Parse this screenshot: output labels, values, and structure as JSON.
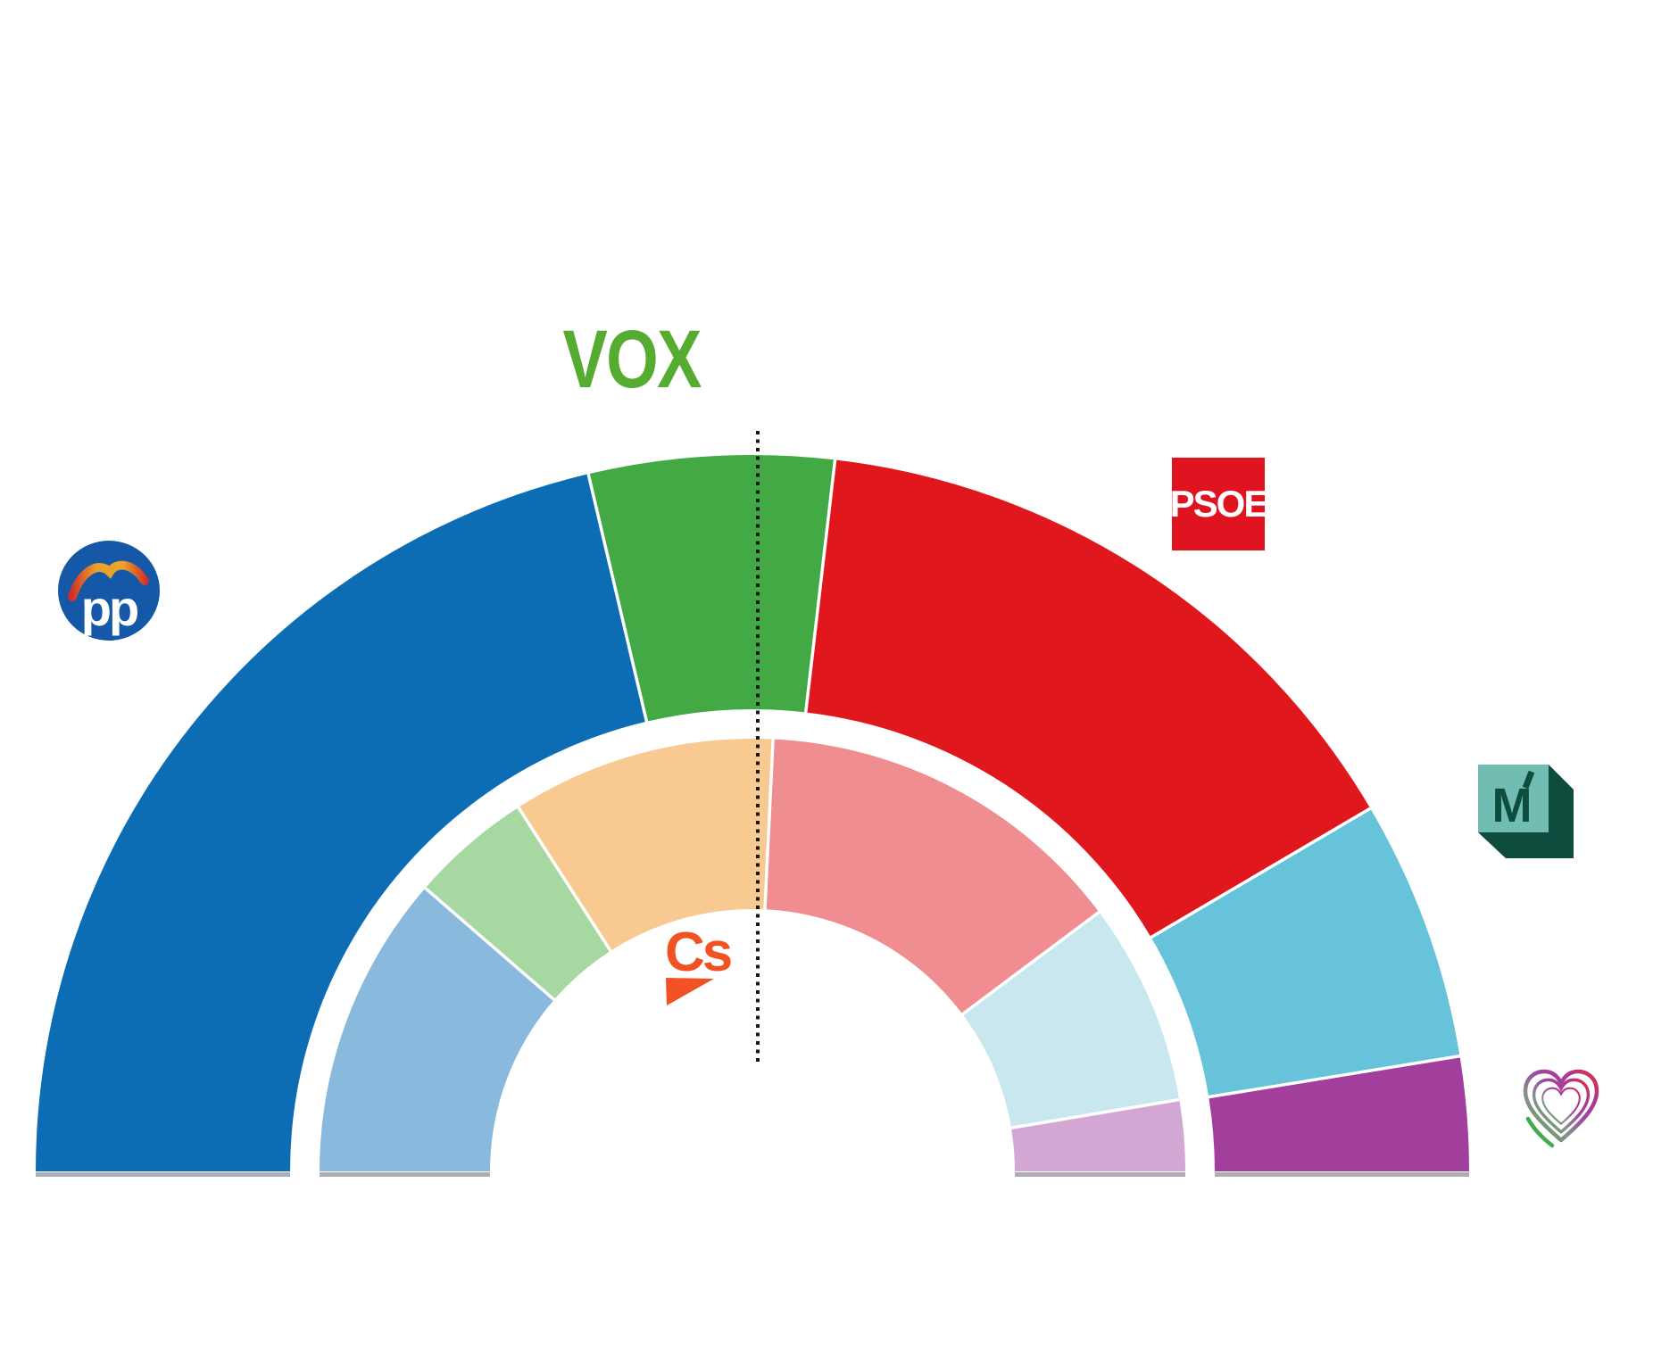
{
  "chart_data": {
    "type": "hemicycle",
    "description": "Two-ring half-donut parliament seat projection chart, Madrid regional parties",
    "legend_position": "logos placed around arc",
    "grid": false,
    "majority_line": {
      "present": true,
      "color": "#161616"
    },
    "baseline_color": "#aeadb3",
    "rings": [
      {
        "id": "outer",
        "total_seats": 136,
        "segments": [
          {
            "id": "pp",
            "party": "PP",
            "seats": 58,
            "color": "#0d6db4"
          },
          {
            "id": "vox",
            "party": "VOX",
            "seats": 15,
            "color": "#43a945"
          },
          {
            "id": "psoe",
            "party": "PSOE",
            "seats": 40,
            "color": "#e0181d"
          },
          {
            "id": "mas-madrid",
            "party": "Más Madrid",
            "seats": 16,
            "color": "#67c3d9"
          },
          {
            "id": "unidas-podemos",
            "party": "Unidas Podemos",
            "seats": 7,
            "color": "#a23f9c"
          }
        ]
      },
      {
        "id": "inner",
        "total_seats": 132,
        "segments": [
          {
            "id": "pp",
            "party": "PP",
            "seats": 30,
            "color": "#8ab9de"
          },
          {
            "id": "vox",
            "party": "VOX",
            "seats": 12,
            "color": "#a7d8a2"
          },
          {
            "id": "cs",
            "party": "Ciudadanos",
            "seats": 26,
            "color": "#f8c991"
          },
          {
            "id": "psoe",
            "party": "PSOE",
            "seats": 37,
            "color": "#f08d91"
          },
          {
            "id": "mas-madrid",
            "party": "Más Madrid",
            "seats": 20,
            "color": "#c9e7ef"
          },
          {
            "id": "unidas-podemos",
            "party": "Unidas Podemos",
            "seats": 7,
            "color": "#d2a7d4"
          }
        ]
      }
    ]
  },
  "logos": {
    "pp": {
      "text": "pp",
      "oval_color": "#1558a8"
    },
    "vox": {
      "text": "VOX",
      "color": "#56ab31"
    },
    "psoe": {
      "text": "PSOE",
      "bg": "#e01420"
    },
    "cs": {
      "text": "Cs",
      "color": "#f15123"
    },
    "mas_madrid": {
      "text": "M",
      "square_color": "#72bdb2",
      "shadow_color": "#0e4c3e"
    },
    "podemos": {}
  }
}
